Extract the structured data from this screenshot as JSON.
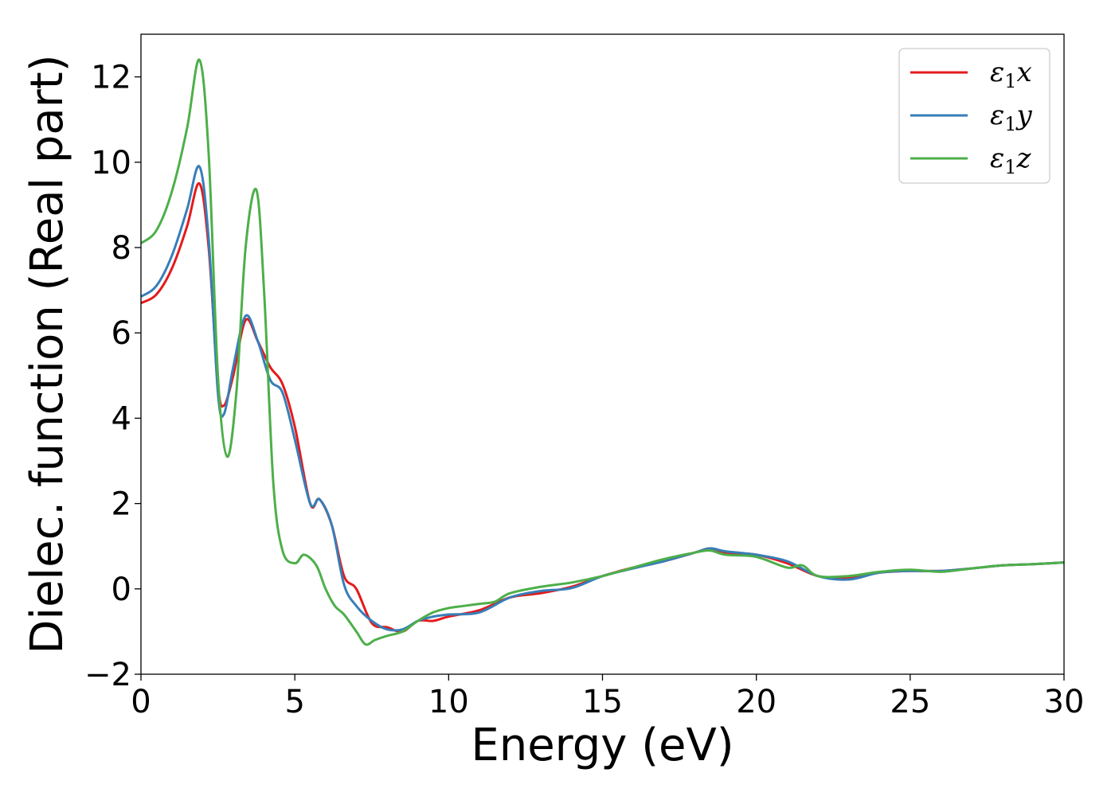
{
  "chart_data": {
    "type": "line",
    "xlabel": "Energy (eV)",
    "ylabel": "Dielec. function (Real part)",
    "xlim": [
      0,
      30
    ],
    "ylim": [
      -2,
      13
    ],
    "xticks": [
      "0",
      "5",
      "10",
      "15",
      "20",
      "25",
      "30"
    ],
    "yticks": [
      "−2",
      "0",
      "2",
      "4",
      "6",
      "8",
      "10",
      "12"
    ],
    "grid": false,
    "legend_position": "top-right",
    "series": [
      {
        "name": "ε₁x",
        "legend": {
          "base": "ε",
          "sub": "1",
          "var": "x"
        },
        "color": "#e41a1c",
        "x": [
          0,
          0.5,
          1.0,
          1.5,
          1.9,
          2.2,
          2.5,
          2.7,
          3.0,
          3.4,
          3.8,
          4.2,
          4.6,
          5.0,
          5.5,
          5.8,
          6.2,
          6.6,
          7.0,
          7.5,
          8.0,
          8.5,
          9.0,
          9.5,
          10,
          11,
          12,
          13,
          14,
          15,
          16,
          17,
          18,
          18.5,
          19,
          20,
          21,
          22,
          23,
          24,
          25,
          26,
          27,
          28,
          29,
          30
        ],
        "y": [
          6.7,
          6.9,
          7.5,
          8.5,
          9.5,
          8.0,
          4.8,
          4.3,
          5.0,
          6.3,
          5.8,
          5.2,
          4.8,
          3.8,
          2.0,
          2.1,
          1.5,
          0.3,
          0.0,
          -0.8,
          -0.9,
          -1.0,
          -0.75,
          -0.75,
          -0.65,
          -0.5,
          -0.2,
          -0.1,
          0.05,
          0.3,
          0.5,
          0.65,
          0.85,
          0.95,
          0.85,
          0.8,
          0.6,
          0.3,
          0.25,
          0.38,
          0.42,
          0.42,
          0.48,
          0.55,
          0.58,
          0.62
        ]
      },
      {
        "name": "ε₁y",
        "legend": {
          "base": "ε",
          "sub": "1",
          "var": "y"
        },
        "color": "#377eb8",
        "x": [
          0,
          0.5,
          1.0,
          1.5,
          1.9,
          2.2,
          2.5,
          2.7,
          3.0,
          3.4,
          3.8,
          4.2,
          4.6,
          5.0,
          5.5,
          5.8,
          6.2,
          6.6,
          7.0,
          7.5,
          8.0,
          8.5,
          9.0,
          9.5,
          10,
          11,
          12,
          13,
          14,
          15,
          16,
          17,
          18,
          18.5,
          19,
          20,
          21,
          22,
          23,
          24,
          25,
          26,
          27,
          28,
          29,
          30
        ],
        "y": [
          6.85,
          7.1,
          7.8,
          8.9,
          9.9,
          8.2,
          4.6,
          4.1,
          5.2,
          6.4,
          5.8,
          4.9,
          4.6,
          3.5,
          2.0,
          2.1,
          1.5,
          0.1,
          -0.4,
          -0.75,
          -0.95,
          -0.95,
          -0.75,
          -0.65,
          -0.6,
          -0.55,
          -0.2,
          -0.05,
          0.02,
          0.3,
          0.48,
          0.65,
          0.85,
          0.95,
          0.88,
          0.8,
          0.65,
          0.3,
          0.22,
          0.38,
          0.42,
          0.42,
          0.48,
          0.55,
          0.58,
          0.62
        ]
      },
      {
        "name": "ε₁z",
        "legend": {
          "base": "ε",
          "sub": "1",
          "var": "z"
        },
        "color": "#4daf4a",
        "x": [
          0,
          0.5,
          1.0,
          1.5,
          1.9,
          2.2,
          2.5,
          2.8,
          3.1,
          3.4,
          3.75,
          4.0,
          4.3,
          4.6,
          5.0,
          5.3,
          5.7,
          6.0,
          6.3,
          6.6,
          7.0,
          7.3,
          7.6,
          8.0,
          8.5,
          9.0,
          9.5,
          10,
          10.5,
          11,
          11.5,
          12,
          13,
          14,
          15,
          16,
          17,
          18,
          18.5,
          19,
          20,
          21,
          21.5,
          22,
          23,
          24,
          25,
          26,
          27,
          28,
          29,
          30
        ],
        "y": [
          8.1,
          8.4,
          9.3,
          10.8,
          12.4,
          10.2,
          5.0,
          3.1,
          4.6,
          8.0,
          9.35,
          7.0,
          2.5,
          0.9,
          0.6,
          0.8,
          0.55,
          0.0,
          -0.4,
          -0.6,
          -1.0,
          -1.3,
          -1.2,
          -1.1,
          -1.0,
          -0.75,
          -0.55,
          -0.45,
          -0.4,
          -0.35,
          -0.3,
          -0.1,
          0.05,
          0.15,
          0.3,
          0.5,
          0.7,
          0.85,
          0.9,
          0.8,
          0.75,
          0.5,
          0.55,
          0.3,
          0.3,
          0.4,
          0.45,
          0.4,
          0.48,
          0.55,
          0.58,
          0.62
        ]
      }
    ]
  }
}
